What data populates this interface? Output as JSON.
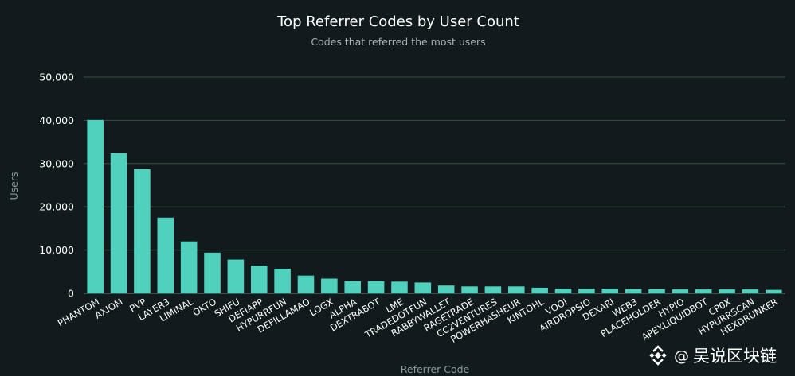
{
  "chart_data": {
    "type": "bar",
    "title": "Top Referrer Codes by User Count",
    "subtitle": "Codes that referred the most users",
    "xlabel": "Referrer Code",
    "ylabel": "Users",
    "ylim": [
      0,
      50000
    ],
    "yticks": [
      0,
      10000,
      20000,
      30000,
      40000,
      50000
    ],
    "ytick_labels": [
      "0",
      "10,000",
      "20,000",
      "30,000",
      "40,000",
      "50,000"
    ],
    "grid": true,
    "bar_color": "#4fd1bd",
    "categories": [
      "PHANTOM",
      "AXIOM",
      "PVP",
      "LAYER3",
      "LIMINAL",
      "OKTO",
      "SHIFU",
      "DEFIAPP",
      "HYPURRFUN",
      "DEFILLAMAO",
      "LOGX",
      "ALPHA",
      "DEXTRABOT",
      "LME",
      "TRADEDOTFUN",
      "RABBYWALLET",
      "RAGETRADE",
      "CC2VENTURES",
      "POWERHASHEUR",
      "KINTOHL",
      "VOOI",
      "AIRDROPSIO",
      "DEXARI",
      "WEB3",
      "PLACEHOLDER",
      "HYPIO",
      "APEXLIQUIDBOT",
      "CP0X",
      "HYPURRSCAN",
      "HEXDRUNKER"
    ],
    "values": [
      40100,
      32400,
      28700,
      17500,
      12000,
      9400,
      7800,
      6400,
      5700,
      4100,
      3400,
      2800,
      2800,
      2700,
      2500,
      1800,
      1600,
      1600,
      1600,
      1300,
      1100,
      1100,
      1100,
      1000,
      950,
      900,
      900,
      900,
      900,
      800
    ]
  },
  "watermark": {
    "at_symbol": "@",
    "text": "吴说区块链"
  }
}
